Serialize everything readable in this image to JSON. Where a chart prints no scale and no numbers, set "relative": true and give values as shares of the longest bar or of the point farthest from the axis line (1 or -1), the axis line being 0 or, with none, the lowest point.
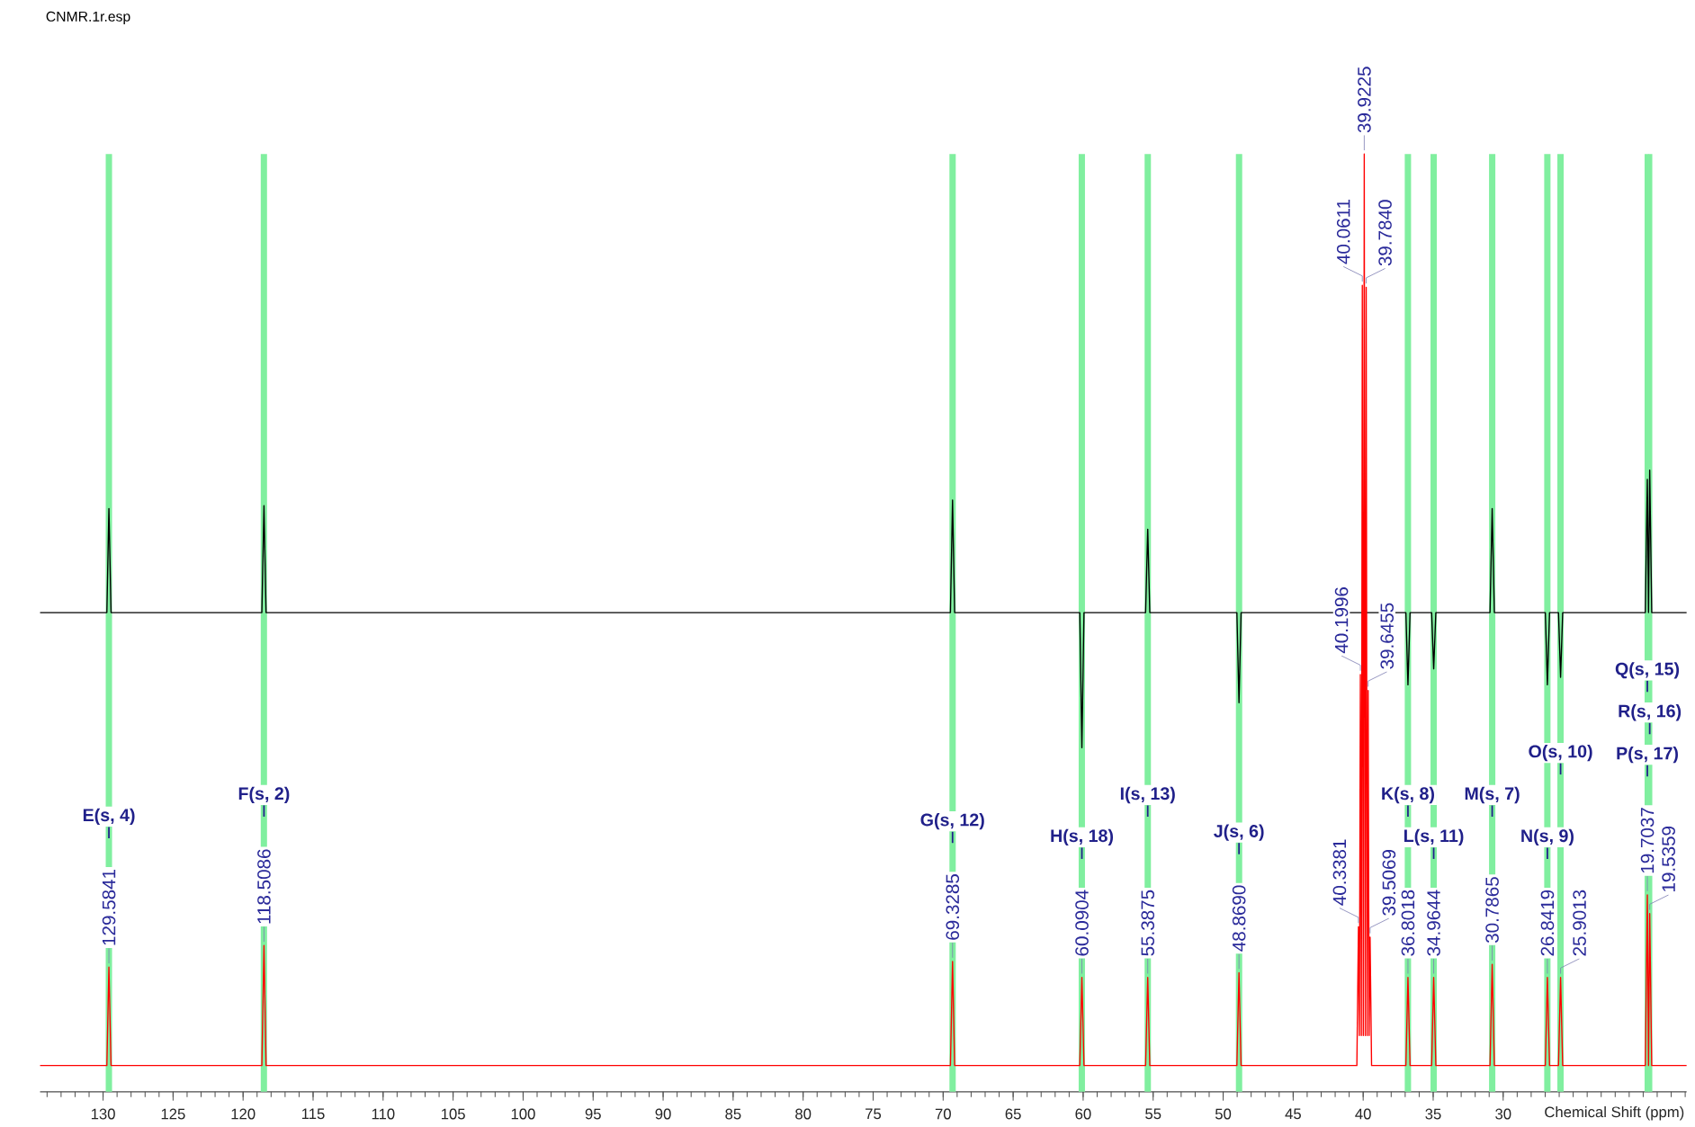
{
  "chart_data": {
    "type": "line",
    "title": "CNMR.1r.esp",
    "xlabel": "Chemical Shift (ppm)",
    "relative": true,
    "xlim": [
      134.5,
      16.9
    ],
    "xticks": [
      130,
      125,
      120,
      115,
      110,
      105,
      100,
      95,
      90,
      85,
      80,
      75,
      70,
      65,
      60,
      55,
      50,
      45,
      40,
      35,
      30
    ],
    "series": [
      {
        "color": "#ff0000",
        "x": [
          134.5,
          129.73,
          129.5841,
          129.43,
          118.66,
          118.5086,
          118.36,
          69.48,
          69.3285,
          69.18,
          60.24,
          60.0904,
          59.94,
          55.54,
          55.3875,
          55.24,
          49.02,
          48.869,
          48.72,
          40.45,
          40.3381,
          40.27,
          40.1996,
          40.13,
          40.0611,
          39.99,
          39.9225,
          39.85,
          39.784,
          39.715,
          39.6455,
          39.575,
          39.5069,
          39.4,
          36.95,
          36.8018,
          36.65,
          35.11,
          34.9644,
          34.81,
          30.94,
          30.7865,
          30.63,
          26.99,
          26.8419,
          26.69,
          26.05,
          25.9013,
          25.75,
          19.85,
          19.7037,
          19.62,
          19.5359,
          19.39,
          16.9
        ],
        "values": [
          0.028,
          0.028,
          0.133,
          0.028,
          0.028,
          0.156,
          0.028,
          0.028,
          0.139,
          0.028,
          0.028,
          0.122,
          0.028,
          0.028,
          0.122,
          0.028,
          0.028,
          0.127,
          0.028,
          0.028,
          0.176,
          0.06,
          0.445,
          0.06,
          0.86,
          0.06,
          1.0,
          0.06,
          0.858,
          0.06,
          0.428,
          0.06,
          0.165,
          0.028,
          0.028,
          0.122,
          0.028,
          0.028,
          0.122,
          0.028,
          0.028,
          0.136,
          0.028,
          0.028,
          0.122,
          0.028,
          0.028,
          0.122,
          0.028,
          0.028,
          0.21,
          0.028,
          0.19,
          0.028,
          0.028
        ],
        "type": "line"
      },
      {
        "color": "#000000",
        "x": [
          134.5,
          129.73,
          129.5841,
          129.43,
          118.66,
          118.5086,
          118.36,
          69.48,
          69.3285,
          69.18,
          60.24,
          60.0904,
          59.94,
          55.54,
          55.3875,
          55.24,
          49.02,
          48.869,
          48.72,
          36.95,
          36.8018,
          36.65,
          35.11,
          34.9644,
          34.81,
          30.94,
          30.7865,
          30.63,
          26.99,
          26.8419,
          26.69,
          26.05,
          25.9013,
          25.75,
          19.85,
          19.7037,
          19.62,
          19.5359,
          19.39,
          16.9
        ],
        "values": [
          0.511,
          0.511,
          0.622,
          0.511,
          0.511,
          0.625,
          0.511,
          0.511,
          0.631,
          0.511,
          0.511,
          0.367,
          0.511,
          0.511,
          0.6,
          0.511,
          0.511,
          0.415,
          0.511,
          0.511,
          0.434,
          0.511,
          0.511,
          0.451,
          0.511,
          0.511,
          0.622,
          0.511,
          0.511,
          0.434,
          0.511,
          0.511,
          0.442,
          0.511,
          0.511,
          0.653,
          0.511,
          0.663,
          0.511,
          0.511
        ]
      }
    ],
    "bands": [
      {
        "axis": "x",
        "from": 129.81,
        "to": 129.36,
        "color": "#80ef9f"
      },
      {
        "axis": "x",
        "from": 118.74,
        "to": 118.29,
        "color": "#80ef9f"
      },
      {
        "axis": "x",
        "from": 69.55,
        "to": 69.1,
        "color": "#80ef9f"
      },
      {
        "axis": "x",
        "from": 60.32,
        "to": 59.87,
        "color": "#80ef9f"
      },
      {
        "axis": "x",
        "from": 55.61,
        "to": 55.16,
        "color": "#80ef9f"
      },
      {
        "axis": "x",
        "from": 49.09,
        "to": 48.64,
        "color": "#80ef9f"
      },
      {
        "axis": "x",
        "from": 37.03,
        "to": 36.58,
        "color": "#80ef9f"
      },
      {
        "axis": "x",
        "from": 35.19,
        "to": 34.74,
        "color": "#80ef9f"
      },
      {
        "axis": "x",
        "from": 31.01,
        "to": 30.56,
        "color": "#80ef9f"
      },
      {
        "axis": "x",
        "from": 27.07,
        "to": 26.62,
        "color": "#80ef9f"
      },
      {
        "axis": "x",
        "from": 26.13,
        "to": 25.68,
        "color": "#80ef9f"
      },
      {
        "axis": "x",
        "from": 19.9,
        "to": 19.6,
        "color": "#80ef9f"
      },
      {
        "axis": "x",
        "from": 19.64,
        "to": 19.35,
        "color": "#80ef9f"
      }
    ],
    "annotations": [
      {
        "text": "129.5841",
        "x": 129.5841,
        "y": 0.133
      },
      {
        "text": "118.5086",
        "x": 118.5086,
        "y": 0.156
      },
      {
        "text": "69.3285",
        "x": 69.3285,
        "y": 0.139
      },
      {
        "text": "60.0904",
        "x": 60.0904,
        "y": 0.122
      },
      {
        "text": "55.3875",
        "x": 55.3875,
        "y": 0.122
      },
      {
        "text": "48.8690",
        "x": 48.869,
        "y": 0.127
      },
      {
        "text": "40.3381",
        "x": 40.3381,
        "y": 0.176
      },
      {
        "text": "40.1996",
        "x": 40.1996,
        "y": 0.445
      },
      {
        "text": "40.0611",
        "x": 40.0611,
        "y": 0.86
      },
      {
        "text": "39.9225",
        "x": 39.9225,
        "y": 1.0
      },
      {
        "text": "39.7840",
        "x": 39.784,
        "y": 0.858
      },
      {
        "text": "39.6455",
        "x": 39.6455,
        "y": 0.428
      },
      {
        "text": "39.5069",
        "x": 39.5069,
        "y": 0.165
      },
      {
        "text": "36.8018",
        "x": 36.8018,
        "y": 0.122
      },
      {
        "text": "34.9644",
        "x": 34.9644,
        "y": 0.122
      },
      {
        "text": "30.7865",
        "x": 30.7865,
        "y": 0.136
      },
      {
        "text": "26.8419",
        "x": 26.8419,
        "y": 0.122
      },
      {
        "text": "25.9013",
        "x": 25.9013,
        "y": 0.122
      },
      {
        "text": "19.7037",
        "x": 19.7037,
        "y": 0.21
      },
      {
        "text": "19.5359",
        "x": 19.5359,
        "y": 0.19
      },
      {
        "text": "E(s, 4)",
        "x": 129.5841
      },
      {
        "text": "F(s, 2)",
        "x": 118.5086
      },
      {
        "text": "G(s, 12)",
        "x": 69.3285
      },
      {
        "text": "H(s, 18)",
        "x": 60.0904
      },
      {
        "text": "I(s, 13)",
        "x": 55.3875
      },
      {
        "text": "J(s, 6)",
        "x": 48.869
      },
      {
        "text": "L(s, 11)",
        "x": 34.9644
      },
      {
        "text": "K(s, 8)",
        "x": 36.8018
      },
      {
        "text": "M(s, 7)",
        "x": 30.7865
      },
      {
        "text": "N(s, 9)",
        "x": 26.8419
      },
      {
        "text": "O(s, 10)",
        "x": 25.9013
      },
      {
        "text": "P(s, 17)",
        "x": 19.7037
      },
      {
        "text": "R(s, 16)",
        "x": 19.5359
      },
      {
        "text": "Q(s, 15)",
        "x": 19.7037
      }
    ]
  }
}
